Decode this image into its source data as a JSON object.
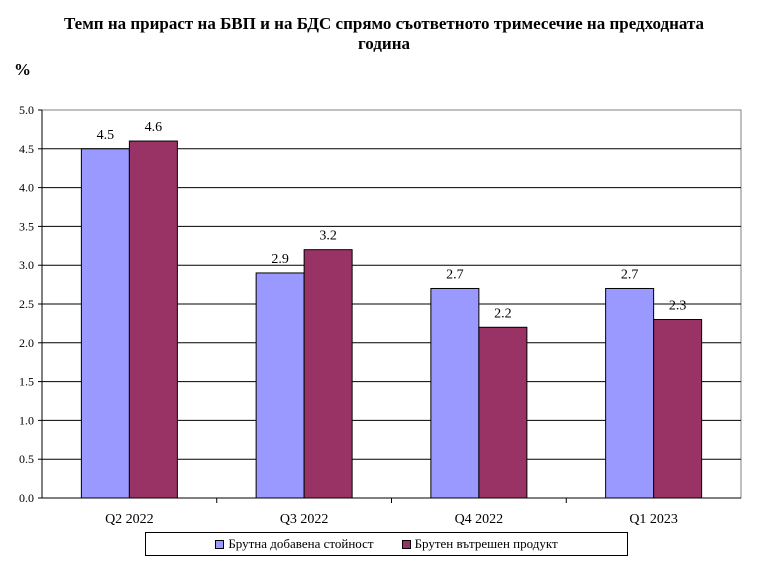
{
  "chart_data": {
    "type": "bar",
    "title_line1": "Темп на прираст на БВП и на БДС спрямо съответното тримесечие на предходната",
    "title_line2": "година",
    "ylabel": "%",
    "categories": [
      "Q2 2022",
      "Q3 2022",
      "Q4 2022",
      "Q1 2023"
    ],
    "series": [
      {
        "name": "Брутна добавена стойност",
        "values": [
          4.5,
          2.9,
          2.7,
          2.7
        ],
        "labels": [
          "4.5",
          "2.9",
          "2.7",
          "2.7"
        ],
        "color": "#9999ff"
      },
      {
        "name": "Брутен вътрешен продукт",
        "values": [
          4.6,
          3.2,
          2.2,
          2.3
        ],
        "labels": [
          "4.6",
          "3.2",
          "2.2",
          "2.3"
        ],
        "color": "#993366"
      }
    ],
    "ylim": [
      0,
      5
    ],
    "yticks": [
      "0.0",
      "0.5",
      "1.0",
      "1.5",
      "2.0",
      "2.5",
      "3.0",
      "3.5",
      "4.0",
      "4.5",
      "5.0"
    ],
    "grid": true,
    "legend_position": "bottom"
  }
}
